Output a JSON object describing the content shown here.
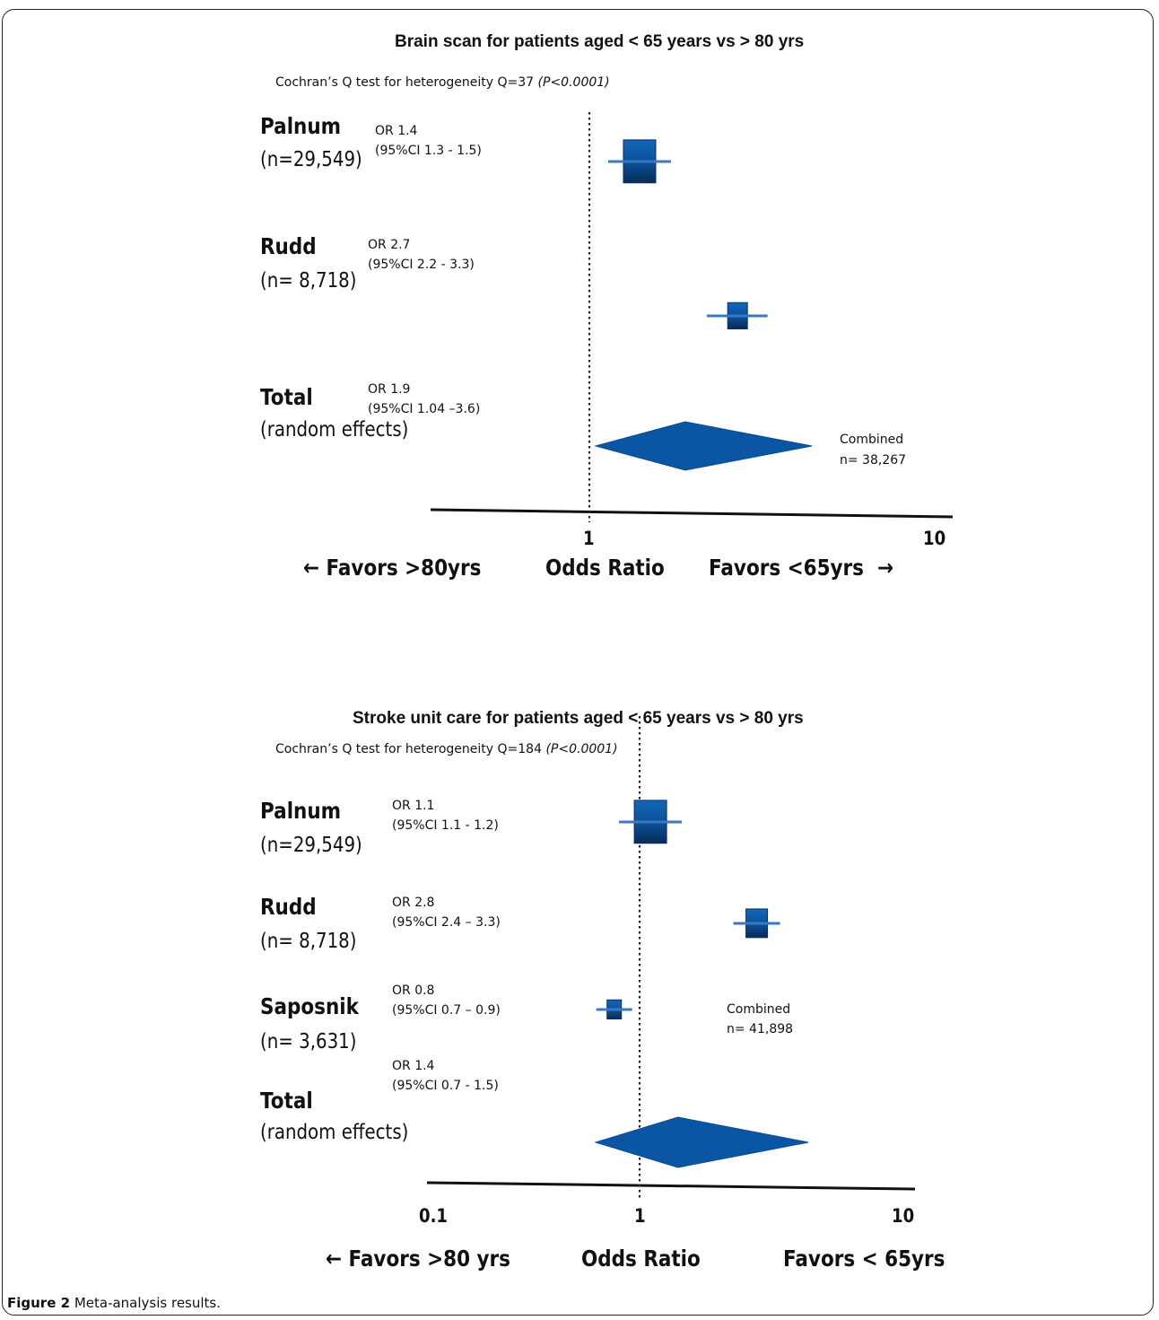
{
  "figure": {
    "caption_label": "Figure 2",
    "caption_text": "Meta-analysis results",
    "caption_end": "."
  },
  "chart_data": [
    {
      "type": "forest",
      "title": "Brain scan for patients aged < 65 years vs > 80 yrs",
      "heterogeneity": {
        "text": "Cochran’s Q test for heterogeneity Q=37 ",
        "p": "(P<0.0001)"
      },
      "studies": [
        {
          "name": "Palnum",
          "n": "(n=29,549)",
          "or_label": "OR 1.4",
          "ci_label": "(95%CI 1.3 - 1.5)",
          "or": 1.4,
          "ci": [
            1.3,
            1.5
          ]
        },
        {
          "name": "Rudd",
          "n": "(n= 8,718)",
          "or_label": "OR 2.7",
          "ci_label": "(95%CI 2.2 - 3.3)",
          "or": 2.7,
          "ci": [
            2.2,
            3.3
          ]
        }
      ],
      "total": {
        "name": "Total",
        "n": "(random effects)",
        "or_label": "OR 1.9",
        "ci_label": "(95%CI 1.04 –3.6)",
        "or": 1.9,
        "ci": [
          1.04,
          3.6
        ]
      },
      "combined": {
        "line1": "Combined",
        "line2": "n= 38,267"
      },
      "x_ticks": [
        "1",
        "10"
      ],
      "xlabel": "Odds Ratio",
      "favors_left": "← Favors >80yrs",
      "favors_right": "Favors <65yrs",
      "favors_right_arrow": "→",
      "scale": "log",
      "colors": {
        "marker": "#0b56a4",
        "ci_line": "#3a78c2",
        "axis": "#111111"
      }
    },
    {
      "type": "forest",
      "title": "Stroke unit care for patients aged < 65 years vs > 80 yrs",
      "heterogeneity": {
        "text": "Cochran’s Q test for heterogeneity Q=184 ",
        "p": "(P<0.0001)"
      },
      "studies": [
        {
          "name": "Palnum",
          "n": "(n=29,549)",
          "or_label": "OR 1.1",
          "ci_label": "(95%CI 1.1 - 1.2)",
          "or": 1.1,
          "ci": [
            1.1,
            1.2
          ]
        },
        {
          "name": "Rudd",
          "n": "(n= 8,718)",
          "or_label": "OR 2.8",
          "ci_label": "(95%CI 2.4 – 3.3)",
          "or": 2.8,
          "ci": [
            2.4,
            3.3
          ]
        },
        {
          "name": "Saposnik",
          "n": "(n= 3,631)",
          "or_label": "OR 0.8",
          "ci_label": "(95%CI 0.7 – 0.9)",
          "or": 0.8,
          "ci": [
            0.7,
            0.9
          ]
        }
      ],
      "total": {
        "name": "Total",
        "n": "(random effects)",
        "or_label": "OR 1.4",
        "ci_label": "(95%CI 0.7 - 1.5)",
        "or": 1.4,
        "ci": [
          0.7,
          1.5
        ]
      },
      "combined": {
        "line1": "Combined",
        "line2": "n= 41,898"
      },
      "x_ticks": [
        "0.1",
        "1",
        "10"
      ],
      "xlabel": "Odds Ratio",
      "favors_left": "← Favors  >80 yrs",
      "favors_right": "Favors  < 65yrs",
      "scale": "log",
      "colors": {
        "marker": "#0b56a4",
        "ci_line": "#3a78c2",
        "axis": "#111111"
      }
    }
  ]
}
